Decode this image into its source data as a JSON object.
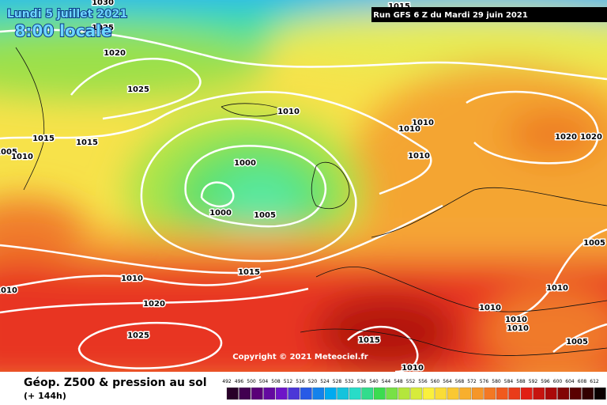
{
  "header": {
    "title": "Lundi 5 juillet 2021",
    "subtitle": "8:00 locale",
    "run": "Run GFS 6 Z du Mardi 29 juin 2021"
  },
  "copyright": "Copyright © 2021 Meteociel.fr",
  "footer": {
    "title": "Géop. Z500 & pression au sol",
    "lead_time": "(+ 144h)"
  },
  "isobar_labels": [
    1030,
    1025,
    1020,
    1025,
    1015,
    1005,
    1010,
    1015,
    1010,
    1000,
    1000,
    1005,
    1010,
    1010,
    1010,
    1020,
    1020,
    1015,
    1005,
    1010,
    1010,
    1010,
    1010,
    1005,
    1015,
    1010,
    1010,
    1020,
    1025,
    1015,
    1010
  ],
  "scale_labels": [
    492,
    496,
    500,
    504,
    508,
    512,
    516,
    520,
    524,
    528,
    532,
    536,
    540,
    544,
    548,
    552,
    556,
    560,
    564,
    568,
    572,
    576,
    580,
    584,
    588,
    592,
    596,
    600,
    604,
    608,
    612
  ]
}
